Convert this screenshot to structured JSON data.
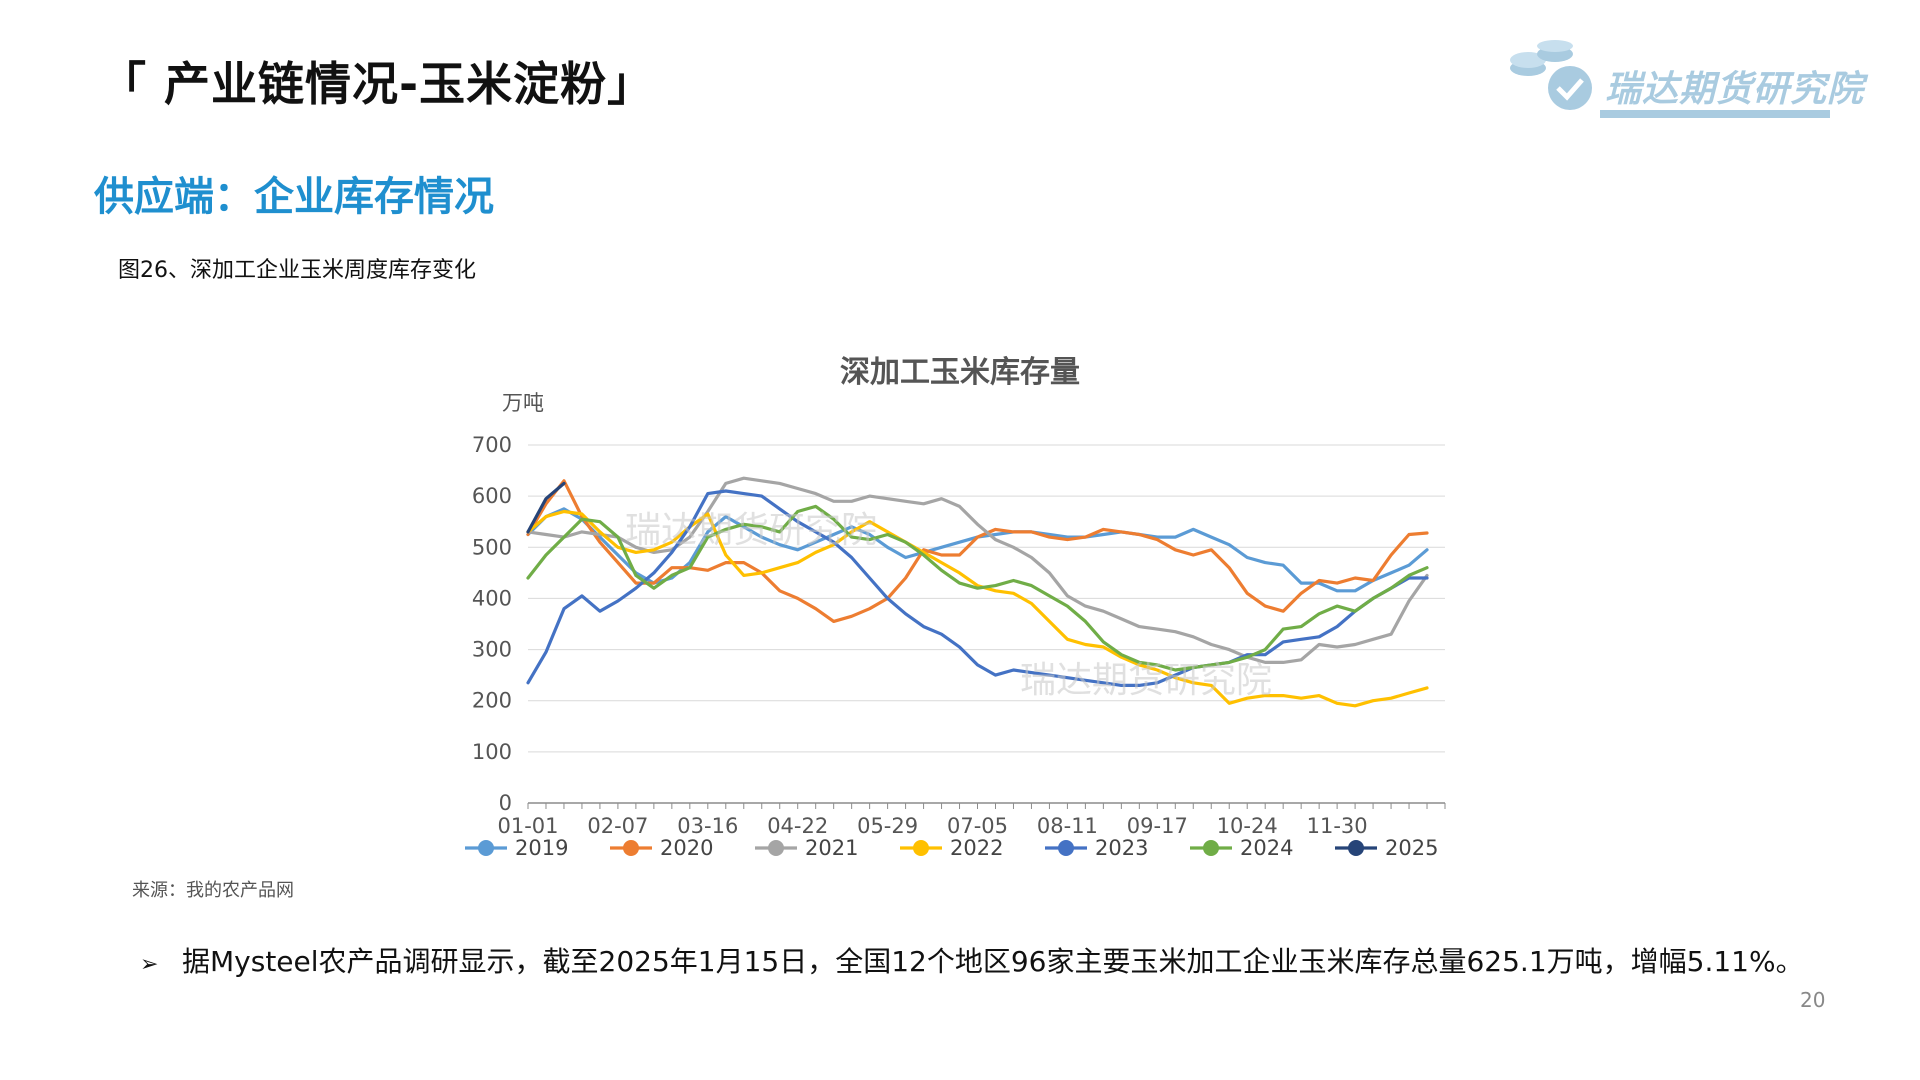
{
  "slide": {
    "title": "「 产业链情况-玉米淀粉」",
    "section_title": "供应端：企业库存情况",
    "figure_caption": "图26、深加工企业玉米周度库存变化",
    "source": "来源：我的农产品网",
    "bullet_text": "据Mysteel农产品调研显示，截至2025年1月15日，全国12个地区96家主要玉米加工企业玉米库存总量625.1万吨，增幅5.11%。",
    "page_number": "20"
  },
  "logo": {
    "text": "瑞达期货研究院",
    "color": "#a9cbe0"
  },
  "watermark": "瑞达期货研究院",
  "chart_data": {
    "type": "line",
    "title": "深加工玉米库存量",
    "ylabel": "万吨",
    "ylim": [
      0,
      700
    ],
    "yticks": [
      0,
      100,
      200,
      300,
      400,
      500,
      600,
      700
    ],
    "xlim": [
      0,
      51
    ],
    "xticks": [
      "01-01",
      "02-07",
      "03-16",
      "04-22",
      "05-29",
      "07-05",
      "08-11",
      "09-17",
      "10-24",
      "11-30"
    ],
    "xtick_weeks": [
      0,
      5,
      10,
      15,
      20,
      25,
      30,
      35,
      40,
      45
    ],
    "grid": true,
    "legend_position": "bottom",
    "series": [
      {
        "name": "2019",
        "color": "#5b9bd5",
        "x": [
          0,
          1,
          2,
          3,
          4,
          5,
          6,
          7,
          8,
          9,
          10,
          11,
          12,
          13,
          14,
          15,
          16,
          17,
          18,
          19,
          20,
          21,
          22,
          23,
          24,
          25,
          26,
          27,
          28,
          29,
          30,
          31,
          32,
          33,
          34,
          35,
          36,
          37,
          38,
          39,
          40,
          41,
          42,
          43,
          44,
          45,
          46,
          47,
          48,
          49,
          50
        ],
        "y": [
          525,
          560,
          575,
          555,
          520,
          485,
          450,
          430,
          440,
          470,
          530,
          560,
          540,
          520,
          505,
          495,
          510,
          525,
          540,
          525,
          500,
          480,
          490,
          500,
          510,
          520,
          525,
          530,
          530,
          525,
          520,
          520,
          525,
          530,
          525,
          520,
          520,
          535,
          520,
          505,
          480,
          470,
          465,
          430,
          430,
          415,
          415,
          435,
          450,
          465,
          495
        ]
      },
      {
        "name": "2020",
        "color": "#ed7d31",
        "x": [
          0,
          1,
          2,
          3,
          4,
          5,
          6,
          7,
          8,
          9,
          10,
          11,
          12,
          13,
          14,
          15,
          16,
          17,
          18,
          19,
          20,
          21,
          22,
          23,
          24,
          25,
          26,
          27,
          28,
          29,
          30,
          31,
          32,
          33,
          34,
          35,
          36,
          37,
          38,
          39,
          40,
          41,
          42,
          43,
          44,
          45,
          46,
          47,
          48,
          49,
          50
        ],
        "y": [
          525,
          585,
          630,
          560,
          510,
          470,
          430,
          430,
          460,
          460,
          455,
          470,
          470,
          450,
          415,
          400,
          380,
          355,
          365,
          380,
          400,
          440,
          495,
          485,
          485,
          520,
          535,
          530,
          530,
          520,
          515,
          520,
          535,
          530,
          525,
          515,
          495,
          485,
          495,
          460,
          410,
          385,
          375,
          410,
          435,
          430,
          440,
          435,
          485,
          525,
          528
        ]
      },
      {
        "name": "2021",
        "color": "#a5a5a5",
        "x": [
          0,
          1,
          2,
          3,
          4,
          5,
          6,
          7,
          8,
          9,
          10,
          11,
          12,
          13,
          14,
          15,
          16,
          17,
          18,
          19,
          20,
          21,
          22,
          23,
          24,
          25,
          26,
          27,
          28,
          29,
          30,
          31,
          32,
          33,
          34,
          35,
          36,
          37,
          38,
          39,
          40,
          41,
          42,
          43,
          44,
          45,
          46,
          47,
          48,
          49,
          50
        ],
        "y": [
          530,
          525,
          520,
          530,
          525,
          520,
          500,
          490,
          495,
          520,
          570,
          625,
          635,
          630,
          625,
          615,
          605,
          590,
          590,
          600,
          595,
          590,
          585,
          595,
          580,
          545,
          515,
          500,
          480,
          450,
          405,
          385,
          375,
          360,
          345,
          340,
          335,
          325,
          310,
          300,
          285,
          275,
          275,
          280,
          310,
          305,
          310,
          320,
          330,
          395,
          445
        ]
      },
      {
        "name": "2022",
        "color": "#ffc000",
        "x": [
          0,
          1,
          2,
          3,
          4,
          5,
          6,
          7,
          8,
          9,
          10,
          11,
          12,
          13,
          14,
          15,
          16,
          17,
          18,
          19,
          20,
          21,
          22,
          23,
          24,
          25,
          26,
          27,
          28,
          29,
          30,
          31,
          32,
          33,
          34,
          35,
          36,
          37,
          38,
          39,
          40,
          41,
          42,
          43,
          44,
          45,
          46,
          47,
          48,
          49,
          50
        ],
        "y": [
          530,
          560,
          570,
          565,
          530,
          500,
          490,
          495,
          510,
          540,
          565,
          485,
          445,
          450,
          460,
          470,
          490,
          505,
          530,
          550,
          530,
          510,
          490,
          470,
          450,
          425,
          415,
          410,
          390,
          355,
          320,
          310,
          305,
          285,
          270,
          260,
          245,
          235,
          230,
          195,
          205,
          210,
          210,
          205,
          210,
          195,
          190,
          200,
          205,
          215,
          225
        ]
      },
      {
        "name": "2023",
        "color": "#4472c4",
        "x": [
          0,
          1,
          2,
          3,
          4,
          5,
          6,
          7,
          8,
          9,
          10,
          11,
          12,
          13,
          14,
          15,
          16,
          17,
          18,
          19,
          20,
          21,
          22,
          23,
          24,
          25,
          26,
          27,
          28,
          29,
          30,
          31,
          32,
          33,
          34,
          35,
          36,
          37,
          38,
          39,
          40,
          41,
          42,
          43,
          44,
          45,
          46,
          47,
          48,
          49,
          50
        ],
        "y": [
          235,
          295,
          380,
          405,
          375,
          395,
          420,
          450,
          490,
          540,
          605,
          610,
          605,
          600,
          575,
          550,
          530,
          510,
          480,
          440,
          400,
          370,
          345,
          330,
          305,
          270,
          250,
          260,
          255,
          250,
          245,
          240,
          235,
          230,
          230,
          235,
          250,
          265,
          270,
          275,
          290,
          290,
          315,
          320,
          325,
          345,
          375,
          400,
          420,
          440,
          440
        ]
      },
      {
        "name": "2024",
        "color": "#70ad47",
        "x": [
          0,
          1,
          2,
          3,
          4,
          5,
          6,
          7,
          8,
          9,
          10,
          11,
          12,
          13,
          14,
          15,
          16,
          17,
          18,
          19,
          20,
          21,
          22,
          23,
          24,
          25,
          26,
          27,
          28,
          29,
          30,
          31,
          32,
          33,
          34,
          35,
          36,
          37,
          38,
          39,
          40,
          41,
          42,
          43,
          44,
          45,
          46,
          47,
          48,
          49,
          50
        ],
        "y": [
          440,
          485,
          520,
          555,
          550,
          520,
          445,
          420,
          445,
          460,
          520,
          535,
          545,
          540,
          530,
          570,
          580,
          555,
          520,
          515,
          525,
          510,
          485,
          455,
          430,
          420,
          425,
          435,
          425,
          405,
          385,
          355,
          315,
          290,
          275,
          270,
          260,
          265,
          270,
          275,
          285,
          300,
          340,
          345,
          370,
          385,
          375,
          400,
          420,
          445,
          460
        ]
      },
      {
        "name": "2025",
        "color": "#264478",
        "x": [
          0,
          1,
          2
        ],
        "y": [
          530,
          595,
          625
        ]
      }
    ]
  }
}
